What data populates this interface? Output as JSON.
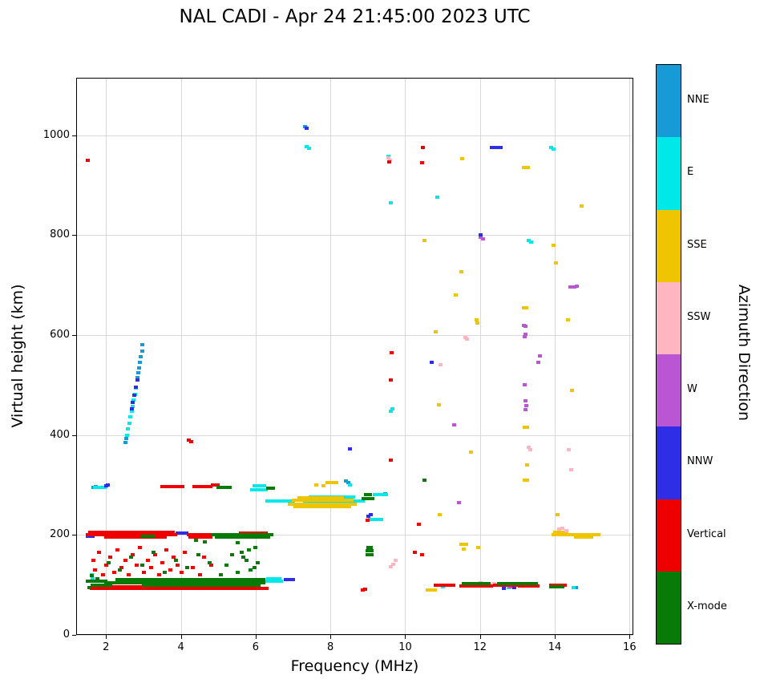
{
  "chart_data": {
    "type": "scatter",
    "title": "NAL CADI - Apr 24 21:45:00 2023 UTC",
    "xlabel": "Frequency (MHz)",
    "ylabel": "Virtual height (km)",
    "legend_title": "Azimuth Direction",
    "xlim": [
      1.2,
      16.1
    ],
    "ylim": [
      0,
      1115
    ],
    "grid": true,
    "xticks": [
      2,
      4,
      6,
      8,
      10,
      12,
      14,
      16
    ],
    "xtick_labels": [
      "2",
      "4",
      "6",
      "8",
      "10",
      "12",
      "14",
      "16"
    ],
    "yticks": [
      0,
      200,
      400,
      600,
      800,
      1000
    ],
    "ytick_labels": [
      "0",
      "200",
      "400",
      "600",
      "800",
      "1000"
    ],
    "categories": [
      {
        "name": "NNE",
        "color": "#169BD7"
      },
      {
        "name": "E",
        "color": "#00E8E8"
      },
      {
        "name": "SSE",
        "color": "#EFC400"
      },
      {
        "name": "SSW",
        "color": "#FFB6C1"
      },
      {
        "name": "W",
        "color": "#BA55D3"
      },
      {
        "name": "NNW",
        "color": "#2E2EE6"
      },
      {
        "name": "Vertical",
        "color": "#EE0000"
      },
      {
        "name": "X-mode",
        "color": "#077A07"
      }
    ],
    "series": [
      {
        "name": "NNE",
        "points": [
          [
            2.5,
            385
          ],
          [
            2.52,
            393
          ],
          [
            2.82,
            515
          ],
          [
            2.85,
            525
          ],
          [
            2.88,
            535
          ],
          [
            2.9,
            545
          ],
          [
            2.92,
            556
          ],
          [
            2.95,
            568
          ],
          [
            2.96,
            580
          ],
          [
            1.65,
            295
          ],
          [
            1.72,
            297
          ],
          [
            7.3,
            1017
          ],
          [
            8.4,
            308
          ],
          [
            8.46,
            305
          ],
          [
            9.45,
            282
          ],
          [
            14.56,
            95
          ]
        ],
        "segments": []
      },
      {
        "name": "E",
        "points": [
          [
            1.6,
            120
          ],
          [
            1.63,
            112
          ],
          [
            2.55,
            400
          ],
          [
            2.58,
            412
          ],
          [
            2.61,
            424
          ],
          [
            2.64,
            436
          ],
          [
            2.67,
            447
          ],
          [
            2.7,
            458
          ],
          [
            2.73,
            470
          ],
          [
            2.76,
            482
          ],
          [
            2.79,
            494
          ],
          [
            7.36,
            977
          ],
          [
            7.42,
            974
          ],
          [
            8.52,
            300
          ],
          [
            9.55,
            958
          ],
          [
            9.6,
            865
          ],
          [
            9.6,
            447
          ],
          [
            9.64,
            452
          ],
          [
            10.85,
            876
          ],
          [
            11.0,
            96
          ],
          [
            12.75,
            95
          ],
          [
            13.3,
            789
          ],
          [
            13.36,
            786
          ],
          [
            13.9,
            976
          ],
          [
            13.96,
            972
          ],
          [
            14.5,
            95
          ]
        ],
        "segments": [
          [
            6.25,
            6.7,
            107
          ],
          [
            6.32,
            6.66,
            113
          ],
          [
            6.3,
            7.0,
            268
          ],
          [
            7.3,
            8.9,
            268
          ],
          [
            7.45,
            8.6,
            276
          ],
          [
            9.05,
            9.35,
            231
          ],
          [
            9.18,
            9.5,
            281
          ],
          [
            1.7,
            1.95,
            295
          ],
          [
            5.9,
            6.3,
            291
          ],
          [
            5.97,
            6.24,
            299
          ]
        ]
      },
      {
        "name": "SSE",
        "points": [
          [
            10.5,
            790
          ],
          [
            10.8,
            606
          ],
          [
            10.9,
            460
          ],
          [
            10.92,
            240
          ],
          [
            11.35,
            680
          ],
          [
            11.5,
            726
          ],
          [
            11.56,
            172
          ],
          [
            11.75,
            365
          ],
          [
            11.9,
            630
          ],
          [
            11.93,
            624
          ],
          [
            11.95,
            175
          ],
          [
            11.52,
            953
          ],
          [
            13.25,
            340
          ],
          [
            13.95,
            780
          ],
          [
            14.02,
            745
          ],
          [
            14.35,
            630
          ],
          [
            14.45,
            490
          ],
          [
            14.7,
            858
          ],
          [
            14.06,
            240
          ],
          [
            7.62,
            300
          ],
          [
            7.8,
            299
          ]
        ],
        "segments": [
          [
            6.9,
            8.65,
            262
          ],
          [
            7.0,
            8.6,
            269
          ],
          [
            7.05,
            8.5,
            256
          ],
          [
            7.15,
            8.3,
            275
          ],
          [
            7.9,
            8.15,
            305
          ],
          [
            13.95,
            15.15,
            200
          ],
          [
            14.0,
            14.35,
            206
          ],
          [
            14.55,
            15.0,
            196
          ],
          [
            10.6,
            10.78,
            90
          ],
          [
            11.5,
            11.62,
            182
          ],
          [
            13.16,
            13.3,
            935
          ],
          [
            13.17,
            13.28,
            655
          ],
          [
            13.18,
            13.26,
            415
          ],
          [
            13.18,
            13.27,
            310
          ]
        ]
      },
      {
        "name": "SSW",
        "points": [
          [
            9.55,
            955
          ],
          [
            9.58,
            949
          ],
          [
            9.6,
            136
          ],
          [
            9.66,
            141
          ],
          [
            9.73,
            150
          ],
          [
            10.93,
            540
          ],
          [
            11.6,
            596
          ],
          [
            11.63,
            592
          ],
          [
            12.0,
            104
          ],
          [
            12.3,
            101
          ],
          [
            12.36,
            103
          ],
          [
            13.3,
            375
          ],
          [
            13.33,
            371
          ],
          [
            14.1,
            211
          ],
          [
            14.2,
            213
          ],
          [
            14.3,
            209
          ],
          [
            14.36,
            370
          ],
          [
            14.42,
            330
          ]
        ],
        "segments": []
      },
      {
        "name": "W",
        "points": [
          [
            13.17,
            620
          ],
          [
            13.2,
            617
          ],
          [
            13.21,
            601
          ],
          [
            13.19,
            597
          ],
          [
            13.18,
            500
          ],
          [
            13.2,
            468
          ],
          [
            13.22,
            459
          ],
          [
            13.21,
            451
          ],
          [
            13.55,
            546
          ],
          [
            13.6,
            558
          ],
          [
            14.4,
            697
          ],
          [
            14.46,
            697
          ],
          [
            14.52,
            696
          ],
          [
            14.58,
            698
          ],
          [
            12.0,
            795
          ],
          [
            12.06,
            792
          ],
          [
            11.3,
            420
          ],
          [
            11.42,
            265
          ],
          [
            12.45,
            100
          ],
          [
            12.8,
            97
          ],
          [
            13.4,
            98
          ]
        ],
        "segments": []
      },
      {
        "name": "NNW",
        "points": [
          [
            2.67,
            452
          ],
          [
            2.71,
            466
          ],
          [
            2.75,
            480
          ],
          [
            2.79,
            496
          ],
          [
            2.83,
            510
          ],
          [
            2.0,
            298
          ],
          [
            2.04,
            300
          ],
          [
            8.5,
            372
          ],
          [
            7.36,
            1014
          ],
          [
            9.0,
            238
          ],
          [
            9.06,
            240
          ],
          [
            12.0,
            800
          ],
          [
            12.62,
            93
          ],
          [
            12.9,
            95
          ],
          [
            10.7,
            545
          ]
        ],
        "segments": [
          [
            3.9,
            4.15,
            203
          ],
          [
            1.5,
            1.63,
            197
          ],
          [
            6.8,
            7.0,
            110
          ],
          [
            12.3,
            12.55,
            975
          ]
        ]
      },
      {
        "name": "Vertical",
        "points": [
          [
            1.5,
            950
          ],
          [
            4.2,
            390
          ],
          [
            4.26,
            386
          ],
          [
            8.85,
            90
          ],
          [
            8.91,
            92
          ],
          [
            8.98,
            230
          ],
          [
            9.62,
            565
          ],
          [
            9.6,
            510
          ],
          [
            9.6,
            350
          ],
          [
            9.57,
            946
          ],
          [
            10.25,
            165
          ],
          [
            10.45,
            160
          ],
          [
            10.35,
            222
          ],
          [
            10.43,
            945
          ],
          [
            10.47,
            975
          ],
          [
            1.65,
            150
          ],
          [
            1.7,
            130
          ],
          [
            1.8,
            165
          ],
          [
            1.9,
            120
          ],
          [
            2.0,
            140
          ],
          [
            2.1,
            155
          ],
          [
            2.2,
            125
          ],
          [
            2.3,
            170
          ],
          [
            2.4,
            135
          ],
          [
            2.5,
            150
          ],
          [
            2.6,
            120
          ],
          [
            2.7,
            160
          ],
          [
            2.8,
            140
          ],
          [
            2.9,
            175
          ],
          [
            3.0,
            125
          ],
          [
            3.1,
            150
          ],
          [
            3.2,
            135
          ],
          [
            3.3,
            160
          ],
          [
            3.4,
            120
          ],
          [
            3.5,
            145
          ],
          [
            3.6,
            170
          ],
          [
            3.7,
            130
          ],
          [
            3.8,
            155
          ],
          [
            3.9,
            140
          ],
          [
            4.0,
            125
          ],
          [
            4.1,
            165
          ],
          [
            4.3,
            135
          ],
          [
            4.5,
            120
          ],
          [
            4.6,
            155
          ],
          [
            4.8,
            140
          ]
        ],
        "segments": [
          [
            1.5,
            3.85,
            200
          ],
          [
            1.56,
            3.8,
            205
          ],
          [
            2.0,
            3.6,
            195
          ],
          [
            4.2,
            4.85,
            200
          ],
          [
            4.25,
            4.8,
            195
          ],
          [
            1.6,
            6.3,
            93
          ],
          [
            1.7,
            5.0,
            97
          ],
          [
            3.5,
            4.05,
            297
          ],
          [
            4.35,
            4.78,
            297
          ],
          [
            4.85,
            5.02,
            300
          ],
          [
            10.8,
            11.3,
            99
          ],
          [
            11.5,
            12.3,
            98
          ],
          [
            12.4,
            13.0,
            100
          ],
          [
            13.05,
            13.55,
            98
          ],
          [
            13.9,
            14.3,
            99
          ],
          [
            5.6,
            6.3,
            204
          ]
        ]
      },
      {
        "name": "X-mode",
        "points": [
          [
            1.55,
            95
          ],
          [
            1.6,
            118
          ],
          [
            1.76,
            112
          ],
          [
            10.5,
            310
          ],
          [
            2.05,
            145
          ],
          [
            2.35,
            130
          ],
          [
            2.65,
            155
          ],
          [
            2.95,
            140
          ],
          [
            3.25,
            165
          ],
          [
            3.55,
            125
          ],
          [
            3.85,
            150
          ],
          [
            4.15,
            135
          ],
          [
            4.45,
            160
          ],
          [
            4.75,
            145
          ],
          [
            5.05,
            120
          ],
          [
            5.2,
            140
          ],
          [
            5.35,
            160
          ],
          [
            5.5,
            125
          ],
          [
            5.65,
            155
          ],
          [
            5.8,
            170
          ],
          [
            5.95,
            135
          ],
          [
            5.5,
            185
          ],
          [
            5.62,
            165
          ],
          [
            5.74,
            150
          ],
          [
            5.86,
            130
          ],
          [
            5.98,
            175
          ],
          [
            6.05,
            145
          ],
          [
            4.4,
            190
          ],
          [
            4.62,
            186
          ]
        ],
        "segments": [
          [
            1.5,
            2.0,
            108
          ],
          [
            1.62,
            2.1,
            100
          ],
          [
            2.0,
            6.25,
            105
          ],
          [
            2.3,
            6.2,
            110
          ],
          [
            3.0,
            6.1,
            100
          ],
          [
            4.85,
            6.45,
            200
          ],
          [
            4.95,
            6.35,
            196
          ],
          [
            2.95,
            3.25,
            197
          ],
          [
            5.0,
            5.35,
            295
          ],
          [
            6.33,
            6.5,
            293
          ],
          [
            8.88,
            9.12,
            272
          ],
          [
            8.93,
            9.1,
            280
          ],
          [
            8.98,
            9.1,
            160
          ],
          [
            8.98,
            9.1,
            168
          ],
          [
            9.0,
            9.08,
            175
          ],
          [
            11.55,
            12.25,
            103
          ],
          [
            12.5,
            12.95,
            103
          ],
          [
            13.0,
            13.5,
            103
          ],
          [
            13.9,
            14.25,
            96
          ]
        ]
      }
    ]
  }
}
